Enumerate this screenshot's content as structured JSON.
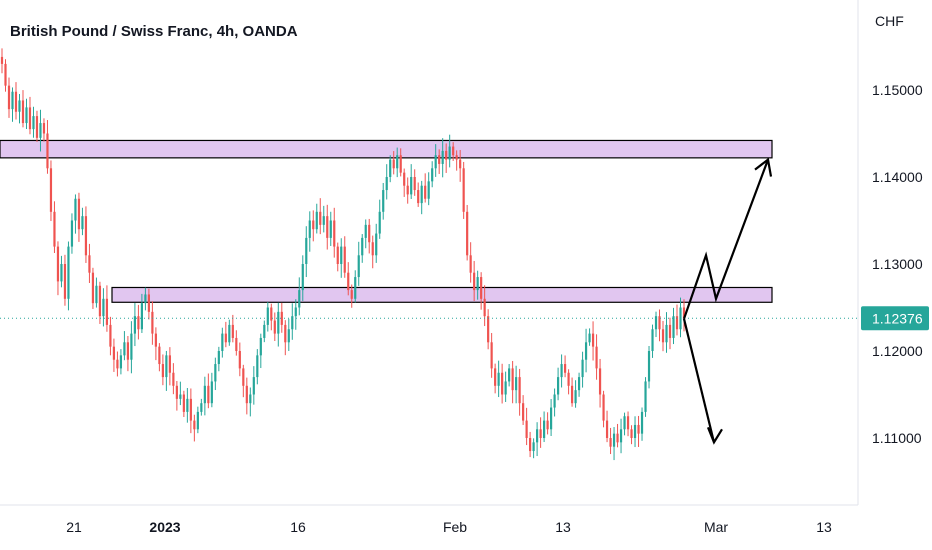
{
  "chart_data": {
    "type": "candlestick",
    "title": "British Pound / Swiss Franc, 4h, OANDA",
    "y_unit": "CHF",
    "ylim": [
      1.1,
      1.155
    ],
    "y_ticks": [
      {
        "value": 1.15,
        "label": "1.15000"
      },
      {
        "value": 1.14,
        "label": "1.14000"
      },
      {
        "value": 1.13,
        "label": "1.13000"
      },
      {
        "value": 1.12,
        "label": "1.12000"
      },
      {
        "value": 1.11,
        "label": "1.11000"
      }
    ],
    "x_ticks": [
      {
        "label": "21",
        "bold": false
      },
      {
        "label": "2023",
        "bold": true
      },
      {
        "label": "16",
        "bold": false
      },
      {
        "label": "Feb",
        "bold": false
      },
      {
        "label": "13",
        "bold": false
      },
      {
        "label": "Mar",
        "bold": false
      },
      {
        "label": "13",
        "bold": false
      }
    ],
    "current_price": {
      "value": 1.12376,
      "label": "1.12376"
    },
    "zones": [
      {
        "name": "upper-resistance",
        "y_low": 1.1422,
        "y_high": 1.1442
      },
      {
        "name": "mid-resistance",
        "y_low": 1.1256,
        "y_high": 1.1273
      }
    ],
    "colors": {
      "up": "#26a69a",
      "down": "#ef5350",
      "zone_fill": "#e1c6f0",
      "zone_border": "#000000",
      "price_tag": "#26a69a",
      "arrows": "#000000"
    },
    "candles_close": [
      1.153,
      1.1505,
      1.1478,
      1.1498,
      1.1475,
      1.1488,
      1.1462,
      1.148,
      1.1455,
      1.147,
      1.1445,
      1.1462,
      1.145,
      1.141,
      1.136,
      1.132,
      1.128,
      1.13,
      1.126,
      1.132,
      1.135,
      1.1375,
      1.134,
      1.1355,
      1.131,
      1.129,
      1.1255,
      1.1275,
      1.124,
      1.126,
      1.123,
      1.1205,
      1.119,
      1.118,
      1.1195,
      1.121,
      1.119,
      1.122,
      1.124,
      1.1225,
      1.1255,
      1.1265,
      1.1245,
      1.122,
      1.1205,
      1.1185,
      1.117,
      1.1195,
      1.1175,
      1.116,
      1.1145,
      1.115,
      1.113,
      1.1145,
      1.112,
      1.111,
      1.113,
      1.114,
      1.116,
      1.114,
      1.1165,
      1.1185,
      1.12,
      1.122,
      1.121,
      1.123,
      1.1215,
      1.12,
      1.118,
      1.116,
      1.114,
      1.115,
      1.117,
      1.1195,
      1.1215,
      1.123,
      1.125,
      1.1235,
      1.122,
      1.1245,
      1.123,
      1.121,
      1.1225,
      1.124,
      1.125,
      1.127,
      1.13,
      1.133,
      1.135,
      1.134,
      1.136,
      1.1345,
      1.1355,
      1.133,
      1.135,
      1.132,
      1.13,
      1.132,
      1.129,
      1.127,
      1.126,
      1.1285,
      1.131,
      1.133,
      1.1345,
      1.1325,
      1.131,
      1.1335,
      1.136,
      1.1385,
      1.14,
      1.142,
      1.141,
      1.1425,
      1.1405,
      1.139,
      1.138,
      1.14,
      1.1385,
      1.137,
      1.139,
      1.1375,
      1.1395,
      1.141,
      1.1425,
      1.1415,
      1.143,
      1.142,
      1.1435,
      1.1425,
      1.142,
      1.141,
      1.136,
      1.131,
      1.129,
      1.127,
      1.1285,
      1.126,
      1.124,
      1.121,
      1.118,
      1.116,
      1.1175,
      1.115,
      1.1165,
      1.118,
      1.1155,
      1.117,
      1.114,
      1.112,
      1.11,
      1.1085,
      1.1095,
      1.111,
      1.11,
      1.112,
      1.111,
      1.1135,
      1.115,
      1.117,
      1.1185,
      1.1175,
      1.116,
      1.114,
      1.1155,
      1.117,
      1.119,
      1.121,
      1.122,
      1.1205,
      1.118,
      1.115,
      1.112,
      1.11,
      1.109,
      1.1105,
      1.1095,
      1.111,
      1.1125,
      1.111,
      1.11,
      1.1115,
      1.1105,
      1.113,
      1.1165,
      1.12,
      1.1225,
      1.124,
      1.1225,
      1.121,
      1.123,
      1.1215,
      1.124,
      1.1225,
      1.125,
      1.1237
    ],
    "projection_paths": [
      {
        "name": "bullish-path",
        "points": [
          [
            1.1237,
            0
          ],
          [
            1.131,
            1
          ],
          [
            1.126,
            2
          ],
          [
            1.142,
            3
          ]
        ]
      },
      {
        "name": "bearish-path",
        "points": [
          [
            1.1237,
            0
          ],
          [
            1.1095,
            1
          ]
        ]
      }
    ]
  }
}
